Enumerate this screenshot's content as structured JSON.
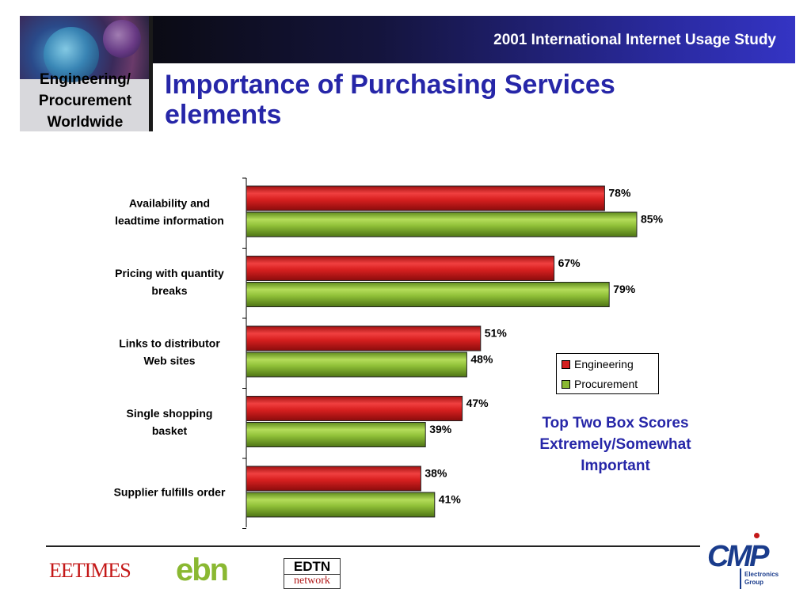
{
  "header": {
    "banner_text": "2001 International Internet Usage Study",
    "logo_lines": [
      "Engineering/",
      "Procurement",
      "Worldwide"
    ],
    "title_lines": [
      "Importance of Purchasing Services",
      "elements"
    ]
  },
  "chart_data": {
    "type": "bar",
    "orientation": "horizontal",
    "categories": [
      [
        "Availability and",
        "leadtime information"
      ],
      [
        "Pricing with quantity",
        "breaks"
      ],
      [
        "Links to distributor",
        "Web sites"
      ],
      [
        "Single shopping",
        "basket"
      ],
      [
        "Supplier fulfills order"
      ]
    ],
    "series": [
      {
        "name": "Engineering",
        "values": [
          78,
          67,
          51,
          47,
          38
        ],
        "color": "#d42020"
      },
      {
        "name": "Procurement",
        "values": [
          85,
          79,
          48,
          39,
          41
        ],
        "color": "#8ab832"
      }
    ],
    "value_suffix": "%",
    "xlim": [
      0,
      100
    ],
    "legend_position": "right",
    "grid": false
  },
  "note_lines": [
    "Top Two Box Scores",
    "Extremely/Somewhat",
    "Important"
  ],
  "footer": {
    "eetimes_logo": "EETIMES",
    "ebn_logo": "ebn",
    "edtn_top": "EDTN",
    "edtn_bottom": "network",
    "cmp_logo": "CMP",
    "cmp_sub_lines": [
      "Electronics",
      "Group"
    ]
  }
}
